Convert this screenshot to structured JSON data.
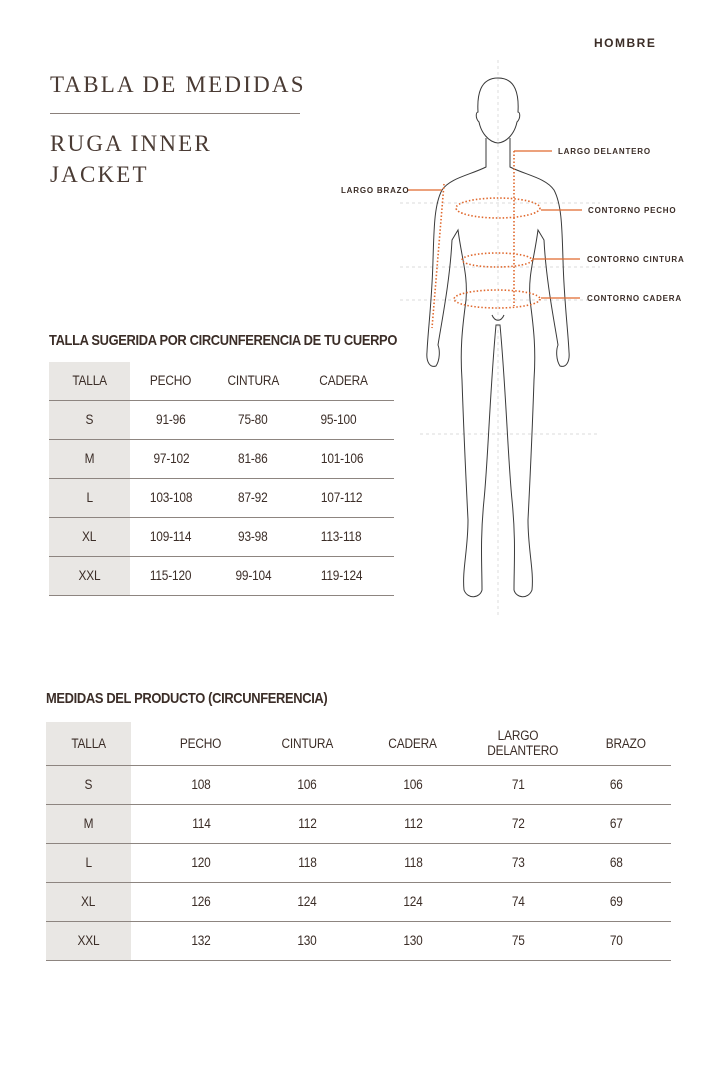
{
  "header": {
    "gender": "HOMBRE",
    "title": "TABLA DE MEDIDAS",
    "product_line1": "RUGA INNER",
    "product_line2": "JACKET"
  },
  "figure": {
    "labels": {
      "largo_delantero": "LARGO DELANTERO",
      "largo_brazo": "LARGO BRAZO",
      "contorno_pecho": "CONTORNO PECHO",
      "contorno_cintura": "CONTORNO CINTURA",
      "contorno_cadera": "CONTORNO CADERA"
    },
    "accent_color": "#e0692e"
  },
  "body_table": {
    "heading": "TALLA SUGERIDA POR CIRCUNFERENCIA DE TU CUERPO",
    "columns": [
      "TALLA",
      "PECHO",
      "CINTURA",
      "CADERA"
    ],
    "rows": [
      [
        "S",
        "91-96",
        "75-80",
        "95-100"
      ],
      [
        "M",
        "97-102",
        "81-86",
        "101-106"
      ],
      [
        "L",
        "103-108",
        "87-92",
        "107-112"
      ],
      [
        "XL",
        "109-114",
        "93-98",
        "113-118"
      ],
      [
        "XXL",
        "115-120",
        "99-104",
        "119-124"
      ]
    ]
  },
  "product_table": {
    "heading": "MEDIDAS DEL PRODUCTO (CIRCUNFERENCIA)",
    "columns": [
      "TALLA",
      "PECHO",
      "CINTURA",
      "CADERA",
      "LARGO DELANTERO",
      "BRAZO"
    ],
    "rows": [
      [
        "S",
        "108",
        "106",
        "106",
        "71",
        "66"
      ],
      [
        "M",
        "114",
        "112",
        "112",
        "72",
        "67"
      ],
      [
        "L",
        "120",
        "118",
        "118",
        "73",
        "68"
      ],
      [
        "XL",
        "126",
        "124",
        "124",
        "74",
        "69"
      ],
      [
        "XXL",
        "132",
        "130",
        "130",
        "75",
        "70"
      ]
    ]
  }
}
